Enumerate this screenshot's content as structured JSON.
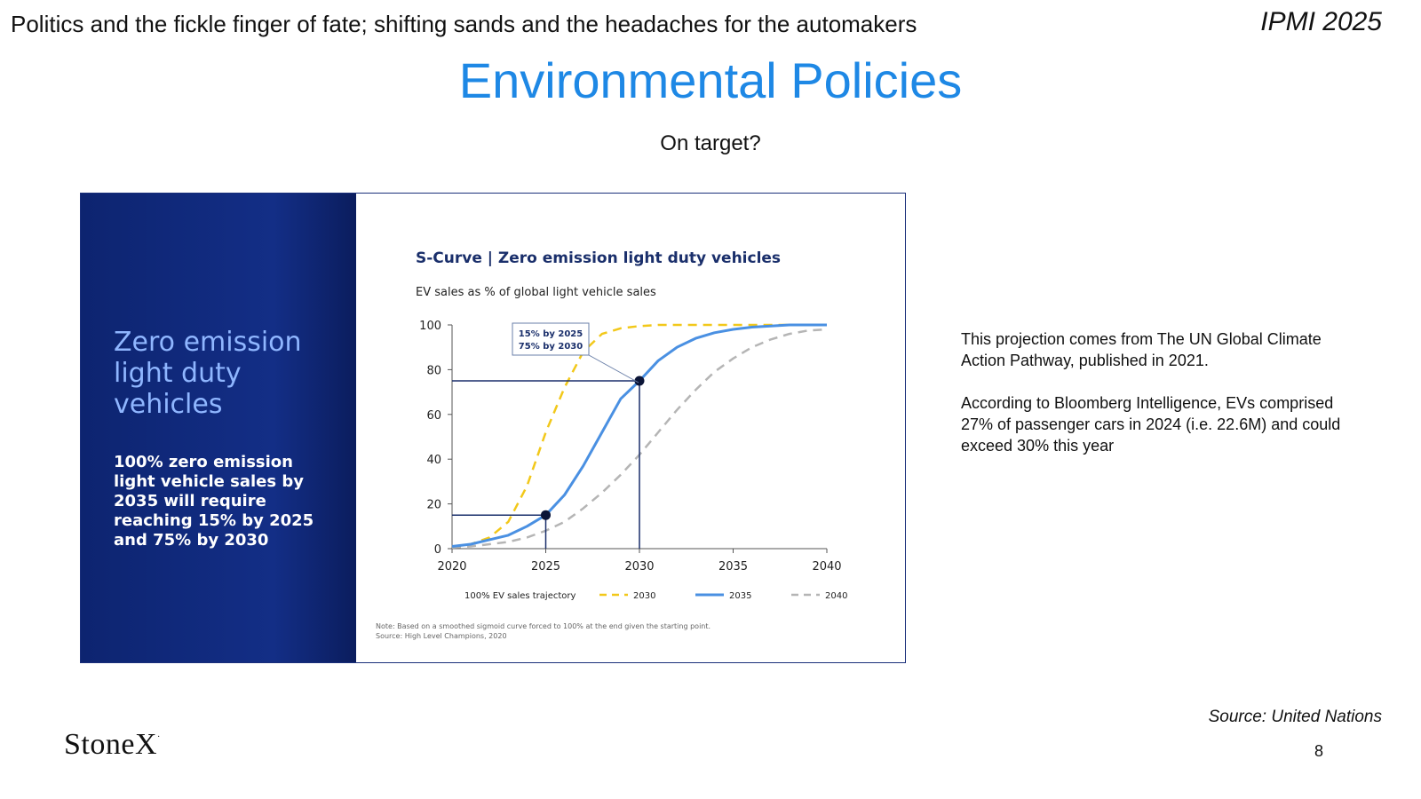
{
  "header": {
    "subtitle": "Politics and the fickle finger of fate; shifting sands and the headaches for the automakers",
    "conference": "IPMI 2025",
    "title": "Environmental Policies",
    "question": "On target?"
  },
  "figure": {
    "left_heading": "Zero emission light duty vehicles",
    "left_body": "100% zero emission light vehicle sales by 2035 will require reaching 15% by 2025 and 75% by 2030"
  },
  "notes": {
    "paragraph1": "This projection  comes from The UN Global Climate Action Pathway, published in 2021.",
    "paragraph2": "According to Bloomberg Intelligence, EVs comprised 27% of passenger cars in 2024 (i.e. 22.6M) and could exceed 30% this year"
  },
  "footer": {
    "source": "Source: United Nations",
    "page_number": "8",
    "logo_text": "StoneX",
    "logo_mark": "·"
  },
  "chart_data": {
    "type": "line",
    "title": "S-Curve | Zero emission light duty vehicles",
    "subtitle": "EV sales as % of global light vehicle sales",
    "xlabel": "",
    "ylabel": "",
    "xlim": [
      2020,
      2040
    ],
    "ylim": [
      0,
      100
    ],
    "x_ticks": [
      2020,
      2025,
      2030,
      2035,
      2040
    ],
    "y_ticks": [
      0,
      20,
      40,
      60,
      80,
      100
    ],
    "grid": false,
    "legend_title": "100% EV sales trajectory",
    "legend_position": "bottom",
    "x": [
      2020,
      2021,
      2022,
      2023,
      2024,
      2025,
      2026,
      2027,
      2028,
      2029,
      2030,
      2031,
      2032,
      2033,
      2034,
      2035,
      2036,
      2037,
      2038,
      2039,
      2040
    ],
    "series": [
      {
        "name": "2030",
        "color": "#f2c81a",
        "style": "dashed",
        "values": [
          1,
          2,
          5,
          12,
          28,
          52,
          72,
          88,
          96,
          98.5,
          99.5,
          100,
          100,
          100,
          100,
          100,
          100,
          100,
          100,
          100,
          100
        ]
      },
      {
        "name": "2035",
        "color": "#4a90e2",
        "style": "solid",
        "values": [
          1,
          2,
          4,
          6,
          10,
          15,
          24,
          37,
          52,
          67,
          75,
          84,
          90,
          94,
          96.5,
          98,
          99,
          99.5,
          100,
          100,
          100
        ]
      },
      {
        "name": "2040",
        "color": "#b5b5b5",
        "style": "dashed",
        "values": [
          0.5,
          1,
          2,
          3,
          5,
          8,
          12,
          18,
          25,
          33,
          42,
          52,
          62,
          71,
          79,
          85,
          90,
          93.5,
          96,
          97.5,
          98
        ]
      }
    ],
    "highlight_points": [
      {
        "x": 2025,
        "y": 15
      },
      {
        "x": 2030,
        "y": 75
      }
    ],
    "callout": [
      "15% by 2025",
      "75% by 2030"
    ],
    "note": "Note: Based on a smoothed sigmoid curve forced to 100% at the end given the starting point.",
    "source": "Source: High Level Champions, 2020"
  }
}
